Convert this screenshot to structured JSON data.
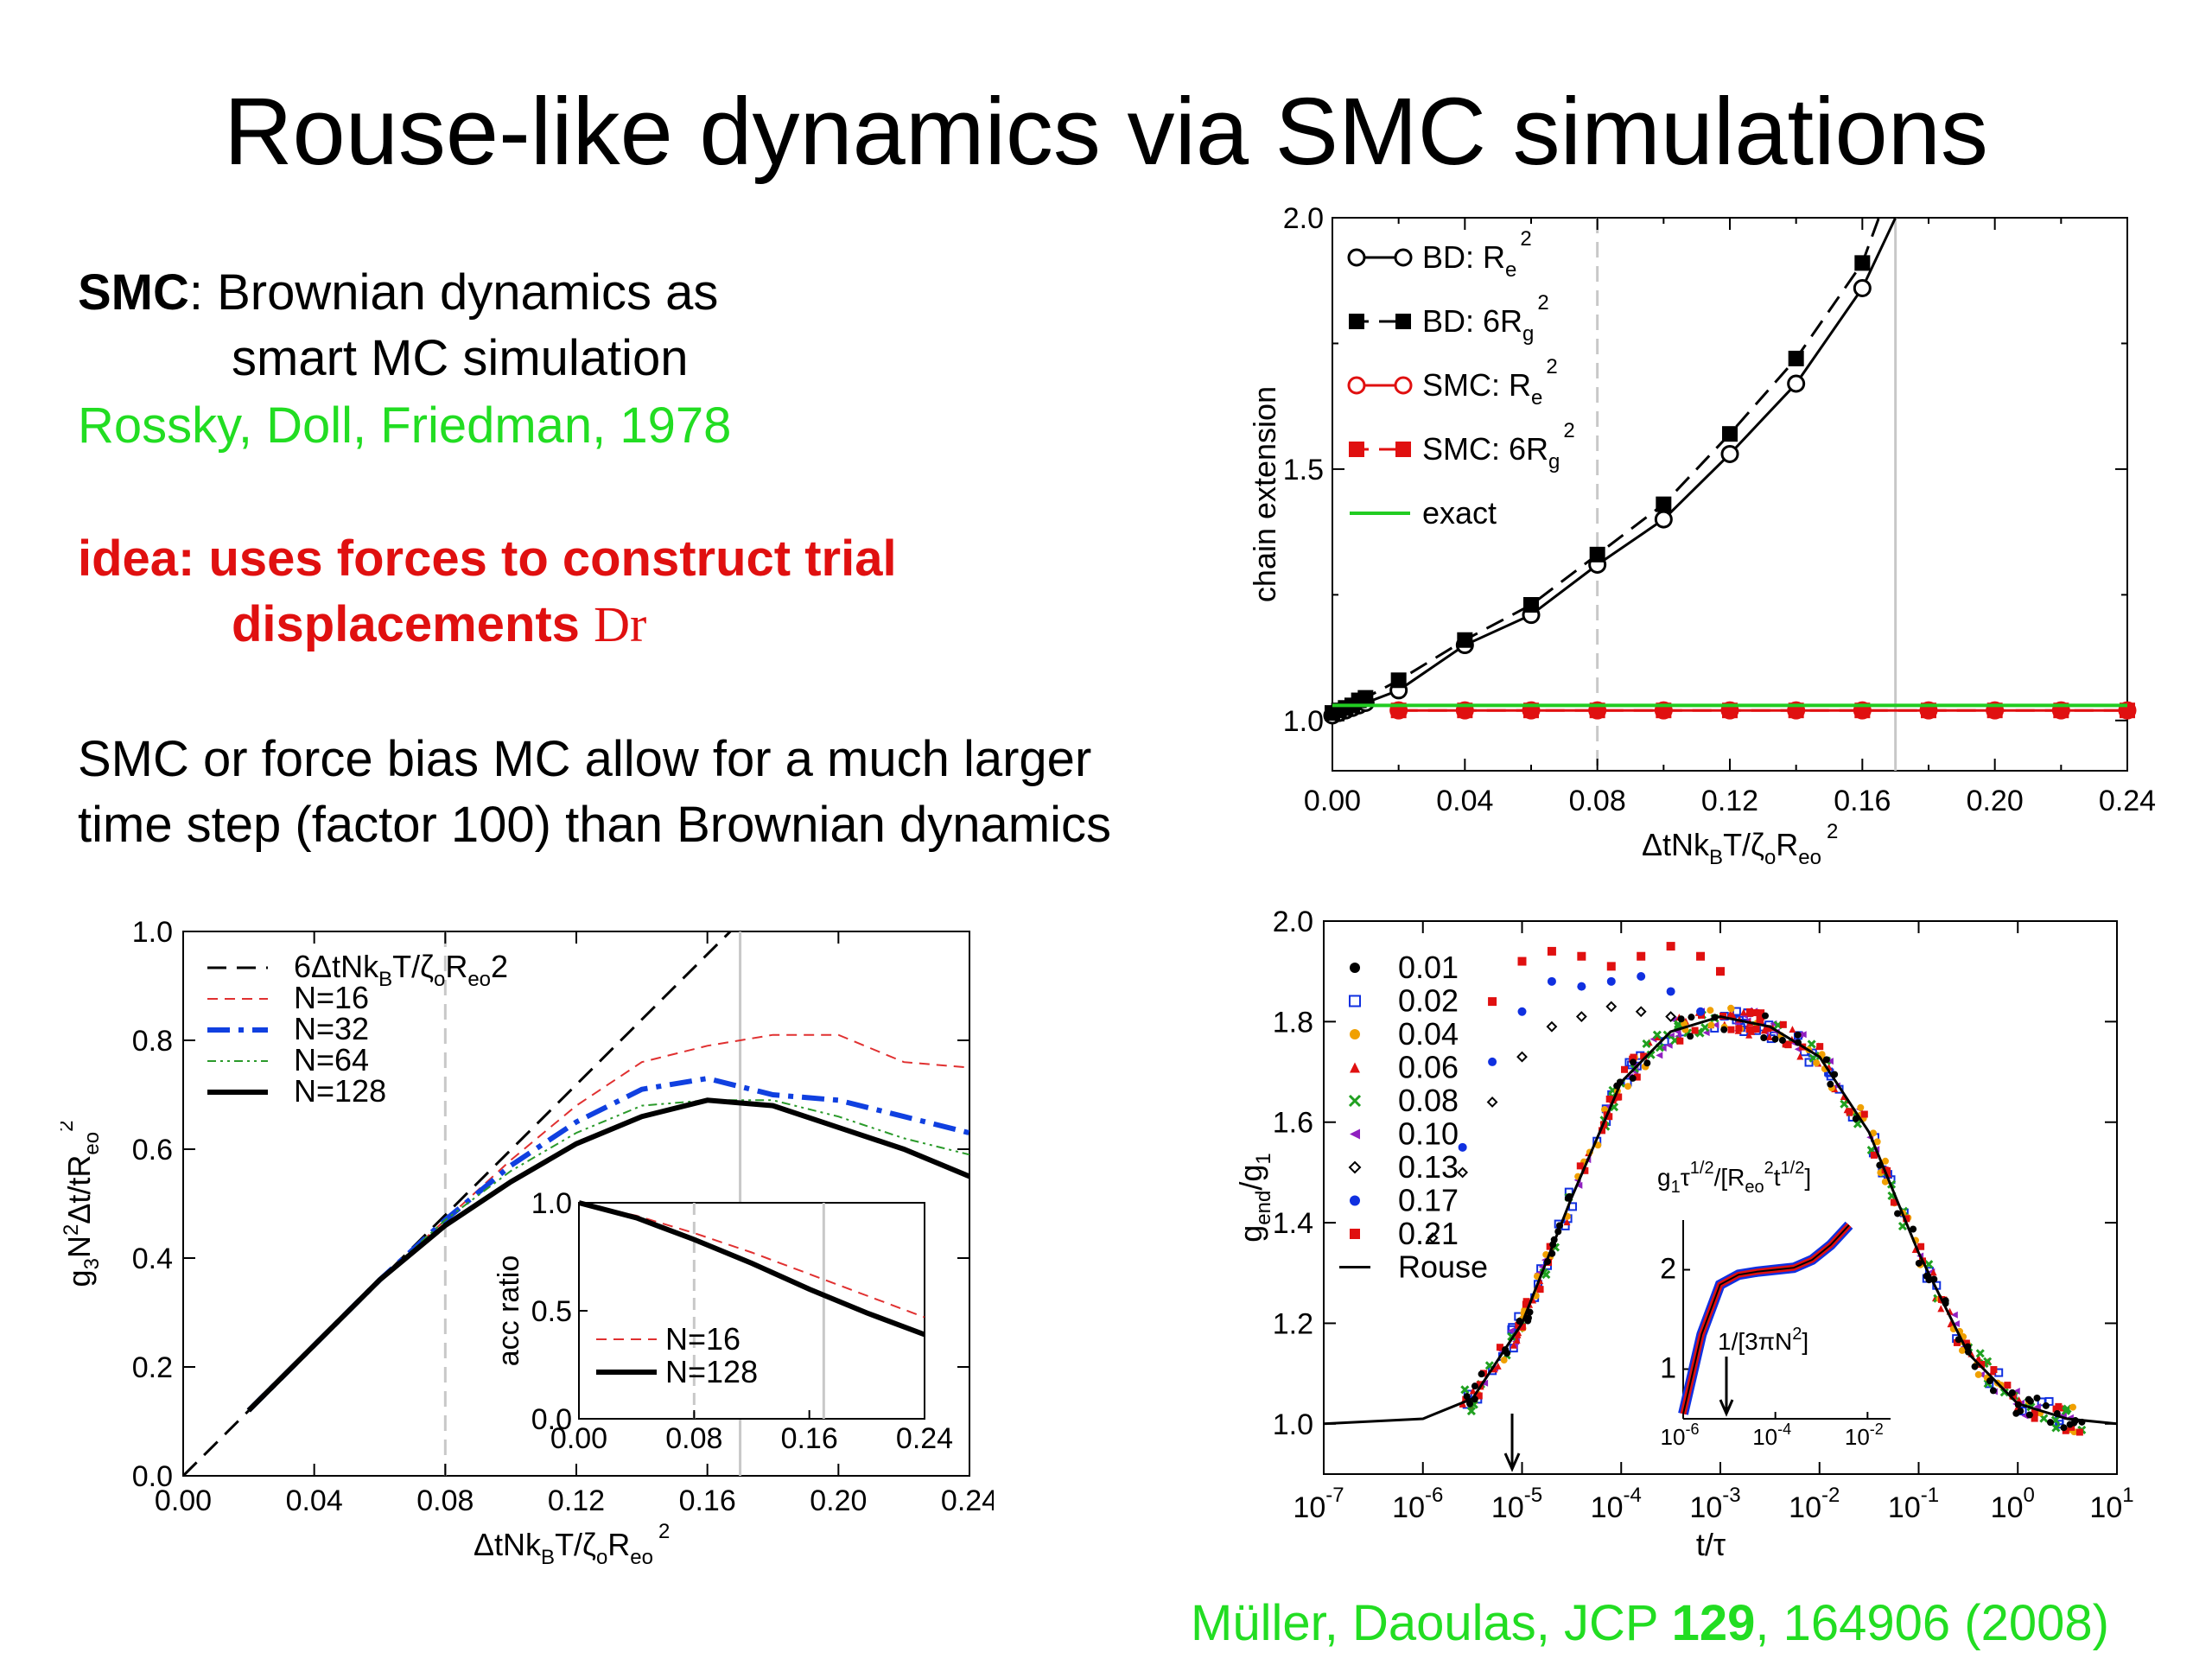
{
  "slide": {
    "title": "Rouse-like dynamics via SMC simulations",
    "smc_term": "SMC",
    "smc_def_1": ": Brownian dynamics as",
    "smc_def_2": "smart MC simulation",
    "citation_1": "Rossky, Doll, Friedman, 1978",
    "idea_1": "idea: uses forces to construct trial",
    "idea_2": "displacements ",
    "idea_symbol": "Dr",
    "body_1": "SMC or force bias MC allow for a much larger",
    "body_2": "time step (factor 100) than Brownian dynamics",
    "ref_authors": "Müller, Daoulas, JCP ",
    "ref_volume": "129",
    "ref_rest": ", 164906 (2008)"
  },
  "chart_data": [
    {
      "id": "top-right",
      "type": "line",
      "ylabel": "chain extension",
      "xlabel_parts": [
        "ΔtNk",
        "B",
        "T/ζ",
        "o",
        "R",
        "eo",
        "2"
      ],
      "xlim": [
        0.0,
        0.24
      ],
      "ylim": [
        0.9,
        2.0
      ],
      "xticks": [
        "0.00",
        "0.04",
        "0.08",
        "0.12",
        "0.16",
        "0.20",
        "0.24"
      ],
      "yticks": [
        "1.0",
        "1.5",
        "2.0"
      ],
      "vlines": [
        0.08,
        0.17
      ],
      "legend": [
        {
          "label": "BD: R",
          "sub": "e",
          "sup": "2"
        },
        {
          "label": "BD: 6R",
          "sub": "g",
          "sup": "2"
        },
        {
          "label": "SMC: R",
          "sub": "e",
          "sup": "2"
        },
        {
          "label": "SMC: 6R",
          "sub": "g",
          "sup": "2"
        },
        {
          "label": "exact"
        }
      ],
      "series": [
        {
          "key": "bd_re2",
          "color": "#000000",
          "marker": "circle-open",
          "dash": "none",
          "x": [
            0.0,
            0.002,
            0.004,
            0.006,
            0.008,
            0.01,
            0.02,
            0.04,
            0.06,
            0.08,
            0.1,
            0.12,
            0.14,
            0.16,
            0.17
          ],
          "y": [
            1.01,
            1.015,
            1.02,
            1.025,
            1.03,
            1.035,
            1.06,
            1.15,
            1.21,
            1.31,
            1.4,
            1.53,
            1.67,
            1.86,
            2.0
          ]
        },
        {
          "key": "bd_6rg2",
          "color": "#000000",
          "marker": "square-filled",
          "dash": "dash",
          "x": [
            0.0,
            0.002,
            0.004,
            0.006,
            0.008,
            0.01,
            0.02,
            0.04,
            0.06,
            0.08,
            0.1,
            0.12,
            0.14,
            0.16,
            0.165
          ],
          "y": [
            1.015,
            1.02,
            1.025,
            1.03,
            1.04,
            1.045,
            1.08,
            1.16,
            1.23,
            1.33,
            1.43,
            1.57,
            1.72,
            1.91,
            2.0
          ]
        },
        {
          "key": "smc_re2",
          "color": "#e01010",
          "marker": "circle-open",
          "dash": "none",
          "x": [
            0.02,
            0.04,
            0.06,
            0.08,
            0.1,
            0.12,
            0.14,
            0.16,
            0.18,
            0.2,
            0.22,
            0.24
          ],
          "y": [
            1.02,
            1.02,
            1.02,
            1.02,
            1.02,
            1.02,
            1.02,
            1.02,
            1.02,
            1.02,
            1.02,
            1.02
          ]
        },
        {
          "key": "smc_6rg2",
          "color": "#e01010",
          "marker": "square-filled",
          "dash": "dash",
          "x": [
            0.02,
            0.04,
            0.06,
            0.08,
            0.1,
            0.12,
            0.14,
            0.16,
            0.18,
            0.2,
            0.22,
            0.24
          ],
          "y": [
            1.02,
            1.02,
            1.02,
            1.02,
            1.02,
            1.02,
            1.02,
            1.02,
            1.02,
            1.02,
            1.02,
            1.02
          ]
        },
        {
          "key": "exact",
          "color": "#22cc22",
          "marker": "none",
          "dash": "none",
          "x": [
            0.0,
            0.24
          ],
          "y": [
            1.03,
            1.03
          ]
        }
      ]
    },
    {
      "id": "bottom-left",
      "type": "line",
      "ylabel_parts": [
        "g",
        "3",
        "N",
        "2",
        "Δt/tR",
        "eo",
        "2"
      ],
      "xlabel_parts": [
        "ΔtNk",
        "B",
        "T/ζ",
        "o",
        "R",
        "eo",
        "2"
      ],
      "xlim": [
        0.0,
        0.24
      ],
      "ylim": [
        0.0,
        1.0
      ],
      "xticks": [
        "0.00",
        "0.04",
        "0.08",
        "0.12",
        "0.16",
        "0.20",
        "0.24"
      ],
      "yticks": [
        "0.0",
        "0.2",
        "0.4",
        "0.6",
        "0.8",
        "1.0"
      ],
      "vlines": [
        0.08,
        0.17
      ],
      "legend": [
        {
          "label": "6ΔtNk",
          "sub": "B",
          "rest": "T/ζ",
          "sub2": "o",
          "rest2": "R",
          "sub3": "eo",
          "rest3": "2"
        },
        {
          "label": "N=16"
        },
        {
          "label": "N=32"
        },
        {
          "label": "N=64"
        },
        {
          "label": "N=128"
        }
      ],
      "series": [
        {
          "key": "linear",
          "color": "#000000",
          "width": 3,
          "dash": "22,12",
          "x": [
            0.0,
            0.167
          ],
          "y": [
            0.0,
            1.0
          ]
        },
        {
          "key": "n16",
          "color": "#e03030",
          "width": 2,
          "dash": "12,8",
          "x": [
            0.02,
            0.04,
            0.06,
            0.08,
            0.1,
            0.12,
            0.14,
            0.16,
            0.18,
            0.2,
            0.22,
            0.24
          ],
          "y": [
            0.12,
            0.24,
            0.36,
            0.47,
            0.58,
            0.68,
            0.76,
            0.79,
            0.81,
            0.81,
            0.76,
            0.75
          ]
        },
        {
          "key": "n32",
          "color": "#1040e0",
          "width": 6,
          "dash": "26,10,6,10",
          "x": [
            0.02,
            0.04,
            0.06,
            0.08,
            0.1,
            0.12,
            0.14,
            0.16,
            0.18,
            0.2,
            0.22,
            0.24
          ],
          "y": [
            0.12,
            0.24,
            0.36,
            0.47,
            0.57,
            0.65,
            0.71,
            0.73,
            0.7,
            0.69,
            0.66,
            0.63
          ]
        },
        {
          "key": "n64",
          "color": "#2a9a2a",
          "width": 2,
          "dash": "10,5,3,5,3,5",
          "x": [
            0.02,
            0.04,
            0.06,
            0.08,
            0.1,
            0.12,
            0.14,
            0.16,
            0.18,
            0.2,
            0.22,
            0.24
          ],
          "y": [
            0.12,
            0.24,
            0.36,
            0.47,
            0.56,
            0.63,
            0.68,
            0.69,
            0.69,
            0.66,
            0.62,
            0.59
          ]
        },
        {
          "key": "n128",
          "color": "#000000",
          "width": 6,
          "dash": "none",
          "x": [
            0.02,
            0.04,
            0.06,
            0.08,
            0.1,
            0.12,
            0.14,
            0.16,
            0.18,
            0.2,
            0.22,
            0.24
          ],
          "y": [
            0.12,
            0.24,
            0.36,
            0.46,
            0.54,
            0.61,
            0.66,
            0.69,
            0.68,
            0.64,
            0.6,
            0.55
          ]
        }
      ],
      "inset": {
        "ylabel": "acc ratio",
        "xlim": [
          0.0,
          0.24
        ],
        "ylim": [
          0.0,
          1.0
        ],
        "xticks": [
          "0.00",
          "0.08",
          "0.16",
          "0.24"
        ],
        "yticks": [
          "0.0",
          "0.5",
          "1.0"
        ],
        "vlines": [
          0.08,
          0.17
        ],
        "legend": [
          {
            "label": "N=16"
          },
          {
            "label": "N=128"
          }
        ],
        "series": [
          {
            "key": "acc_n16",
            "color": "#e03030",
            "width": 2,
            "dash": "12,8",
            "x": [
              0.0,
              0.04,
              0.08,
              0.12,
              0.16,
              0.2,
              0.24
            ],
            "y": [
              1.0,
              0.94,
              0.86,
              0.77,
              0.67,
              0.57,
              0.47
            ]
          },
          {
            "key": "acc_n128",
            "color": "#000000",
            "width": 6,
            "dash": "none",
            "x": [
              0.0,
              0.04,
              0.08,
              0.12,
              0.16,
              0.2,
              0.24
            ],
            "y": [
              1.0,
              0.93,
              0.83,
              0.72,
              0.6,
              0.49,
              0.39
            ]
          }
        ]
      }
    },
    {
      "id": "bottom-right",
      "type": "scatter",
      "xscale": "log",
      "ylabel_parts": [
        "g",
        "end",
        "/g",
        "1"
      ],
      "xlabel": "t/τ",
      "xlim_log10": [
        -7,
        1
      ],
      "ylim": [
        0.9,
        2.0
      ],
      "xtick_exponents": [
        "-7",
        "-6",
        "-5",
        "-4",
        "-3",
        "-2",
        "-1",
        "0",
        "1"
      ],
      "yticks": [
        "1.0",
        "1.2",
        "1.4",
        "1.6",
        "1.8",
        "2.0"
      ],
      "arrow_x_log10": -5.1,
      "legend": [
        {
          "label": "0.01",
          "color": "#000000",
          "marker": "dot"
        },
        {
          "label": "0.02",
          "color": "#1030e0",
          "marker": "square-open"
        },
        {
          "label": "0.04",
          "color": "#f0a000",
          "marker": "dot"
        },
        {
          "label": "0.06",
          "color": "#e01010",
          "marker": "triangle"
        },
        {
          "label": "0.08",
          "color": "#20a020",
          "marker": "cross"
        },
        {
          "label": "0.10",
          "color": "#9020c0",
          "marker": "triangle-left"
        },
        {
          "label": "0.13",
          "color": "#000000",
          "marker": "diamond-open"
        },
        {
          "label": "0.17",
          "color": "#1030e0",
          "marker": "dot"
        },
        {
          "label": "0.21",
          "color": "#e01010",
          "marker": "square-filled"
        },
        {
          "label": "Rouse",
          "color": "#000000",
          "marker": "line"
        }
      ],
      "rouse": {
        "x_log10": [
          -7,
          -6,
          -5.5,
          -5,
          -4.5,
          -4,
          -3.5,
          -3,
          -2.5,
          -2,
          -1.5,
          -1,
          -0.5,
          0,
          0.5,
          1
        ],
        "y": [
          1.0,
          1.01,
          1.05,
          1.2,
          1.45,
          1.68,
          1.78,
          1.81,
          1.79,
          1.73,
          1.58,
          1.34,
          1.14,
          1.04,
          1.01,
          1.0
        ]
      },
      "outliers": [
        {
          "label": "0.21",
          "x_log10": [
            -5.3,
            -5.0,
            -4.7,
            -4.4,
            -4.1,
            -3.8,
            -3.5,
            -3.2,
            -3.0
          ],
          "y": [
            1.84,
            1.92,
            1.94,
            1.93,
            1.91,
            1.93,
            1.95,
            1.93,
            1.9
          ]
        },
        {
          "label": "0.17",
          "x_log10": [
            -5.6,
            -5.3,
            -5.0,
            -4.7,
            -4.4,
            -4.1,
            -3.8,
            -3.5,
            -3.2
          ],
          "y": [
            1.55,
            1.72,
            1.82,
            1.88,
            1.87,
            1.88,
            1.89,
            1.86,
            1.82
          ]
        },
        {
          "label": "0.13",
          "x_log10": [
            -5.9,
            -5.6,
            -5.3,
            -5.0,
            -4.7,
            -4.4,
            -4.1,
            -3.8,
            -3.5
          ],
          "y": [
            1.37,
            1.5,
            1.64,
            1.73,
            1.79,
            1.81,
            1.83,
            1.82,
            1.81
          ]
        }
      ],
      "inset": {
        "label_parts": [
          "g",
          "1",
          "τ",
          "1/2",
          "/[R",
          "eo",
          "2",
          "t",
          "1/2",
          "]"
        ],
        "xlim_log10": [
          -6,
          -1.5
        ],
        "ylim": [
          0.5,
          2.5
        ],
        "xtick_exponents": [
          "-6",
          "-4",
          "-2"
        ],
        "yticks": [
          "1",
          "2"
        ],
        "annotation_parts": [
          "1/[3πN",
          "2",
          "]"
        ],
        "curve": {
          "x_log10": [
            -6.0,
            -5.6,
            -5.2,
            -4.8,
            -4.4,
            -4.0,
            -3.6,
            -3.2,
            -2.8,
            -2.4
          ],
          "y": [
            0.55,
            1.35,
            1.85,
            1.95,
            1.98,
            2.0,
            2.02,
            2.1,
            2.25,
            2.45
          ]
        }
      }
    }
  ]
}
